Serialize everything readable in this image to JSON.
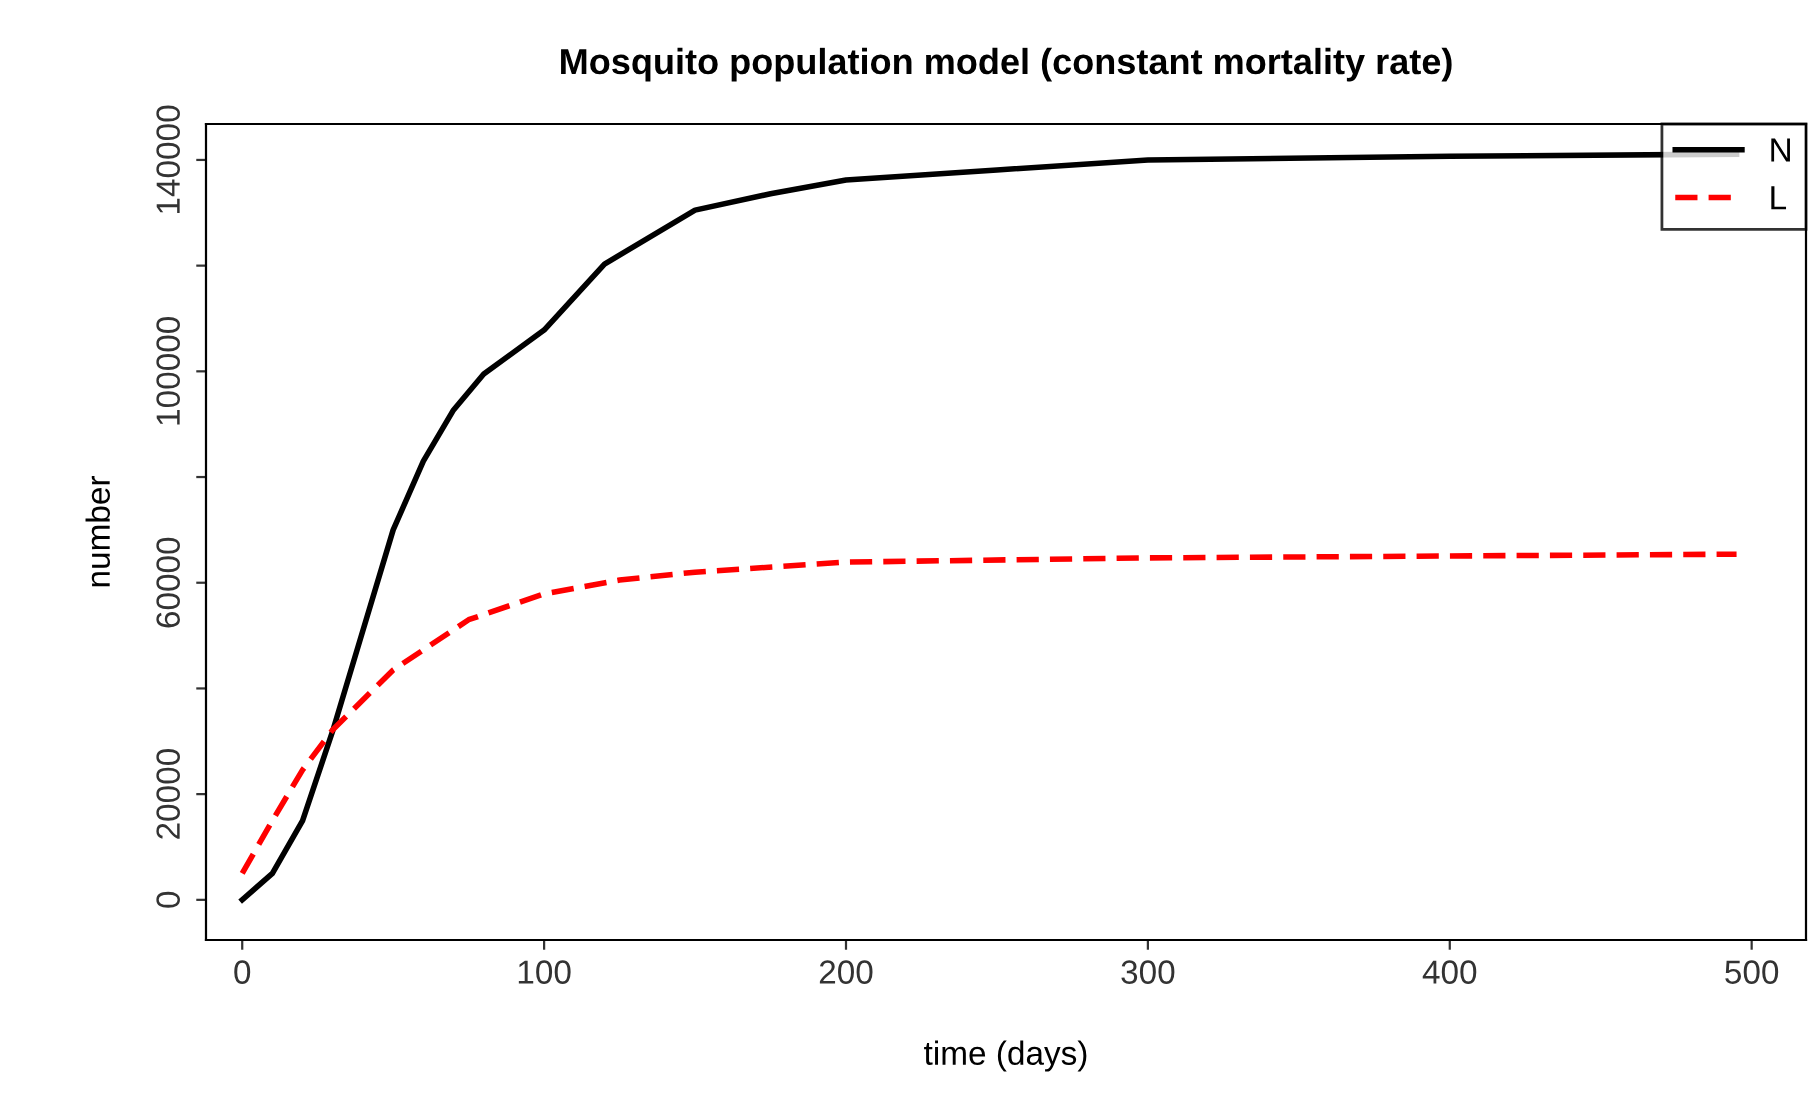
{
  "chart_data": {
    "type": "line",
    "title": "Mosquito population model (constant mortality rate)",
    "xlabel": "time (days)",
    "ylabel": "number",
    "series": [
      {
        "name": "N",
        "color": "#000000",
        "line_style": "solid",
        "x": [
          0,
          10,
          20,
          30,
          40,
          50,
          60,
          70,
          80,
          100,
          120,
          150,
          175,
          200,
          250,
          300,
          400,
          495
        ],
        "values": [
          0,
          5000,
          15000,
          32000,
          51000,
          70000,
          83000,
          92700,
          99500,
          107800,
          120300,
          130500,
          133600,
          136200,
          138100,
          140000,
          140700,
          141100
        ]
      },
      {
        "name": "L",
        "color": "#ff0000",
        "line_style": "dashed",
        "x": [
          0,
          10,
          20,
          30,
          50,
          75,
          100,
          125,
          150,
          200,
          300,
          495
        ],
        "values": [
          5000,
          15000,
          24600,
          32200,
          43500,
          53000,
          57900,
          60500,
          62000,
          63900,
          64700,
          65400
        ]
      }
    ],
    "xlim": [
      -12,
      518
    ],
    "ylim": [
      -7600,
      146800
    ],
    "xticks": [
      0,
      100,
      200,
      300,
      400,
      500
    ],
    "yticks": [
      0,
      20000,
      {
        "value": 40000,
        "label": null
      },
      60000,
      {
        "value": 80000,
        "label": null
      },
      100000,
      {
        "value": 120000,
        "label": null
      },
      140000
    ],
    "grid": false,
    "legend": "top right",
    "marker": "none"
  }
}
